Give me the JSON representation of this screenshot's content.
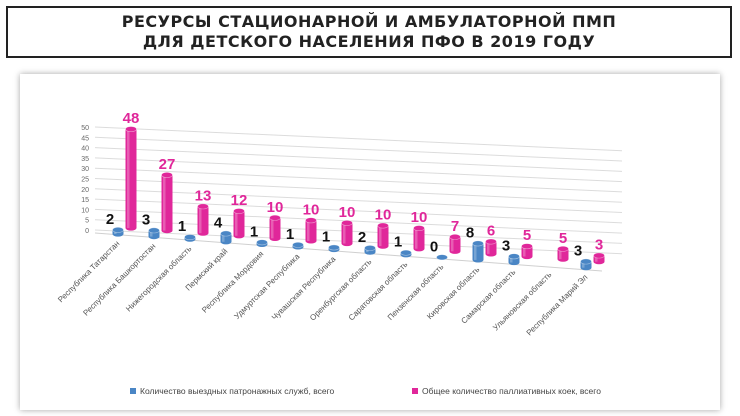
{
  "title": [
    "РЕСУРСЫ СТАЦИОНАРНОЙ И АМБУЛАТОРНОЙ ПМП",
    "ДЛЯ ДЕТСКОГО НАСЕЛЕНИЯ ПФО В 2019 ГОДУ"
  ],
  "chart_data": {
    "type": "bar",
    "style": "3d-cylinder",
    "categories": [
      "Республика Татарстан",
      "Республика Башкортостан",
      "Нижегородская область",
      "Пермский край",
      "Республика Мордовия",
      "Удмуртская Республика",
      "Чувашская Республика",
      "Оренбургская область",
      "Саратовская область",
      "Пензенская область",
      "Кировская область",
      "Самарская область",
      "Ульяновская область",
      "Республика Марий Эл"
    ],
    "series": [
      {
        "name": "Количество выездных патронажных служб, всего",
        "color": "#4a86c5",
        "values": [
          2,
          3,
          1,
          4,
          1,
          1,
          1,
          2,
          1,
          0,
          8,
          3,
          null,
          3
        ]
      },
      {
        "name": "Общее количество паллиативных коек, всего",
        "color": "#e0279a",
        "values": [
          48,
          27,
          13,
          12,
          10,
          10,
          10,
          10,
          10,
          7,
          6,
          5,
          5,
          3
        ]
      }
    ],
    "ylim": [
      0,
      50
    ],
    "yticks": [
      0,
      5,
      10,
      15,
      20,
      25,
      30,
      35,
      40,
      45,
      50
    ],
    "grid": true,
    "legend": "bottom",
    "label_colors": {
      "series0": "#111111",
      "series1": "#e0279a"
    }
  }
}
